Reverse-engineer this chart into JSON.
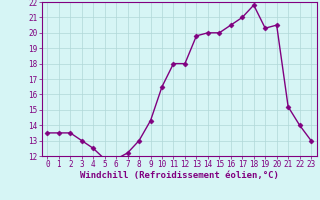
{
  "x": [
    0,
    1,
    2,
    3,
    4,
    5,
    6,
    7,
    8,
    9,
    10,
    11,
    12,
    13,
    14,
    15,
    16,
    17,
    18,
    19,
    20,
    21,
    22,
    23
  ],
  "y": [
    13.5,
    13.5,
    13.5,
    13.0,
    12.5,
    11.8,
    11.8,
    12.2,
    13.0,
    14.3,
    16.5,
    18.0,
    18.0,
    19.8,
    20.0,
    20.0,
    20.5,
    21.0,
    21.8,
    20.3,
    20.5,
    15.2,
    14.0,
    13.0
  ],
  "line_color": "#800080",
  "marker": "D",
  "marker_size": 2.5,
  "bg_color": "#d6f5f5",
  "grid_color": "#b0d8d8",
  "xlabel": "Windchill (Refroidissement éolien,°C)",
  "ylim": [
    12,
    22
  ],
  "xlim": [
    -0.5,
    23.5
  ],
  "yticks": [
    12,
    13,
    14,
    15,
    16,
    17,
    18,
    19,
    20,
    21,
    22
  ],
  "xticks": [
    0,
    1,
    2,
    3,
    4,
    5,
    6,
    7,
    8,
    9,
    10,
    11,
    12,
    13,
    14,
    15,
    16,
    17,
    18,
    19,
    20,
    21,
    22,
    23
  ],
  "tick_fontsize": 5.5,
  "xlabel_fontsize": 6.5,
  "line_width": 1.0
}
